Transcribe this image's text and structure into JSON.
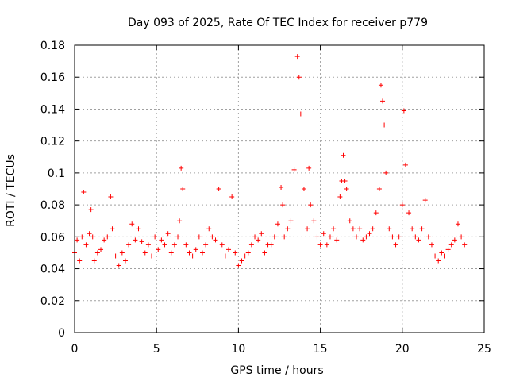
{
  "chart_data": {
    "type": "scatter",
    "title": "Day 093 of 2025, Rate Of TEC Index for receiver p779",
    "xlabel": "GPS time / hours",
    "ylabel": "ROTI / TECUs",
    "xlim": [
      0,
      25
    ],
    "ylim": [
      0,
      0.18
    ],
    "x_ticks": [
      0,
      5,
      10,
      15,
      20,
      25
    ],
    "x_tick_labels": [
      "0",
      "5",
      "10",
      "15",
      "20",
      "25"
    ],
    "y_ticks": [
      0,
      0.02,
      0.04,
      0.06,
      0.08,
      0.1,
      0.12,
      0.14,
      0.16,
      0.18
    ],
    "y_tick_labels": [
      "0",
      "0.02",
      "0.04",
      "0.06",
      "0.08",
      "0.1",
      "0.12",
      "0.14",
      "0.16",
      "0.18"
    ],
    "grid": true,
    "marker": "+",
    "color": "#ff0000",
    "series": [
      {
        "name": "ROTI",
        "x": [
          0.0,
          0.15,
          0.3,
          0.45,
          0.55,
          0.7,
          0.9,
          1.0,
          1.1,
          1.2,
          1.4,
          1.6,
          1.8,
          2.0,
          2.2,
          2.3,
          2.5,
          2.7,
          2.9,
          3.1,
          3.3,
          3.5,
          3.7,
          3.9,
          4.1,
          4.3,
          4.5,
          4.7,
          4.9,
          5.1,
          5.3,
          5.5,
          5.7,
          5.9,
          6.1,
          6.3,
          6.4,
          6.5,
          6.6,
          6.8,
          7.0,
          7.2,
          7.4,
          7.6,
          7.8,
          8.0,
          8.2,
          8.4,
          8.6,
          8.8,
          9.0,
          9.2,
          9.4,
          9.6,
          9.8,
          10.0,
          10.2,
          10.4,
          10.6,
          10.8,
          11.0,
          11.2,
          11.4,
          11.6,
          11.8,
          12.0,
          12.2,
          12.4,
          12.6,
          12.7,
          12.8,
          13.0,
          13.2,
          13.4,
          13.6,
          13.7,
          13.8,
          14.0,
          14.2,
          14.3,
          14.4,
          14.6,
          14.8,
          15.0,
          15.2,
          15.4,
          15.6,
          15.8,
          16.0,
          16.2,
          16.3,
          16.4,
          16.5,
          16.6,
          16.8,
          17.0,
          17.2,
          17.4,
          17.6,
          17.8,
          18.0,
          18.2,
          18.4,
          18.6,
          18.7,
          18.8,
          18.9,
          19.0,
          19.2,
          19.4,
          19.6,
          19.8,
          20.0,
          20.1,
          20.2,
          20.4,
          20.6,
          20.8,
          21.0,
          21.2,
          21.4,
          21.6,
          21.8,
          22.0,
          22.2,
          22.4,
          22.6,
          22.8,
          23.0,
          23.2,
          23.4,
          23.6,
          23.8
        ],
        "y": [
          0.05,
          0.058,
          0.045,
          0.06,
          0.088,
          0.055,
          0.062,
          0.077,
          0.06,
          0.045,
          0.05,
          0.052,
          0.058,
          0.06,
          0.085,
          0.065,
          0.048,
          0.042,
          0.05,
          0.045,
          0.055,
          0.068,
          0.058,
          0.065,
          0.057,
          0.05,
          0.055,
          0.048,
          0.06,
          0.052,
          0.058,
          0.055,
          0.062,
          0.05,
          0.055,
          0.06,
          0.07,
          0.103,
          0.09,
          0.055,
          0.05,
          0.048,
          0.052,
          0.06,
          0.05,
          0.055,
          0.065,
          0.06,
          0.058,
          0.09,
          0.055,
          0.048,
          0.052,
          0.085,
          0.05,
          0.042,
          0.045,
          0.048,
          0.05,
          0.055,
          0.06,
          0.058,
          0.062,
          0.05,
          0.055,
          0.055,
          0.06,
          0.068,
          0.091,
          0.08,
          0.06,
          0.065,
          0.07,
          0.102,
          0.173,
          0.16,
          0.137,
          0.09,
          0.065,
          0.103,
          0.08,
          0.07,
          0.06,
          0.055,
          0.062,
          0.055,
          0.06,
          0.065,
          0.058,
          0.085,
          0.095,
          0.111,
          0.095,
          0.09,
          0.07,
          0.065,
          0.06,
          0.065,
          0.058,
          0.06,
          0.062,
          0.065,
          0.075,
          0.09,
          0.155,
          0.145,
          0.13,
          0.1,
          0.065,
          0.06,
          0.055,
          0.06,
          0.08,
          0.139,
          0.105,
          0.075,
          0.065,
          0.06,
          0.058,
          0.065,
          0.083,
          0.06,
          0.055,
          0.048,
          0.045,
          0.05,
          0.048,
          0.052,
          0.055,
          0.058,
          0.068,
          0.06,
          0.055
        ]
      }
    ]
  }
}
